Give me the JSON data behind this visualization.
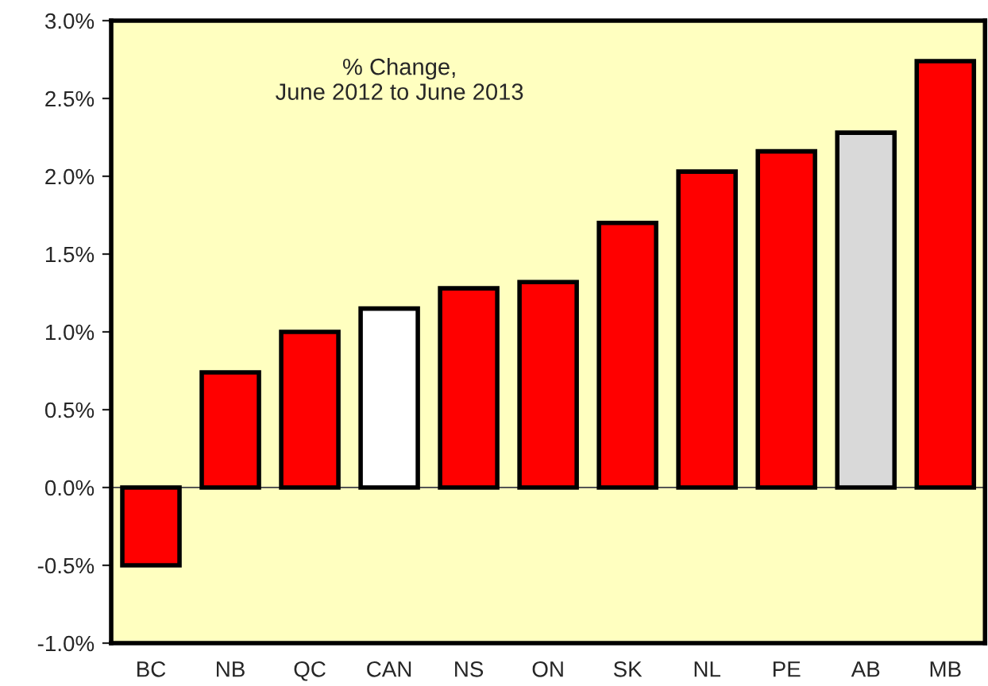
{
  "chart_data": {
    "type": "bar",
    "categories": [
      "BC",
      "NB",
      "QC",
      "CAN",
      "NS",
      "ON",
      "SK",
      "NL",
      "PE",
      "AB",
      "MB"
    ],
    "values": [
      -0.5,
      0.74,
      1.0,
      1.15,
      1.28,
      1.32,
      1.7,
      2.03,
      2.16,
      2.28,
      2.74
    ],
    "colors": [
      "#ff0000",
      "#ff0000",
      "#ff0000",
      "#ffffff",
      "#ff0000",
      "#ff0000",
      "#ff0000",
      "#ff0000",
      "#ff0000",
      "#d9d9d9",
      "#ff0000"
    ],
    "annotations": [
      "% Change,\nJune 2012 to June 2013"
    ],
    "ylim": [
      -1.0,
      3.0
    ],
    "yticks": [
      {
        "value": -1.0,
        "label": "-1.0%"
      },
      {
        "value": -0.5,
        "label": "-0.5%"
      },
      {
        "value": 0.0,
        "label": "0.0%"
      },
      {
        "value": 0.5,
        "label": "0.5%"
      },
      {
        "value": 1.0,
        "label": "1.0%"
      },
      {
        "value": 1.5,
        "label": "1.5%"
      },
      {
        "value": 2.0,
        "label": "2.0%"
      },
      {
        "value": 2.5,
        "label": "2.5%"
      },
      {
        "value": 3.0,
        "label": "3.0%"
      }
    ],
    "ref_lines": [
      {
        "axis": "y",
        "value": 0.0,
        "color": "#555555"
      }
    ],
    "grid": false,
    "legend": false
  }
}
